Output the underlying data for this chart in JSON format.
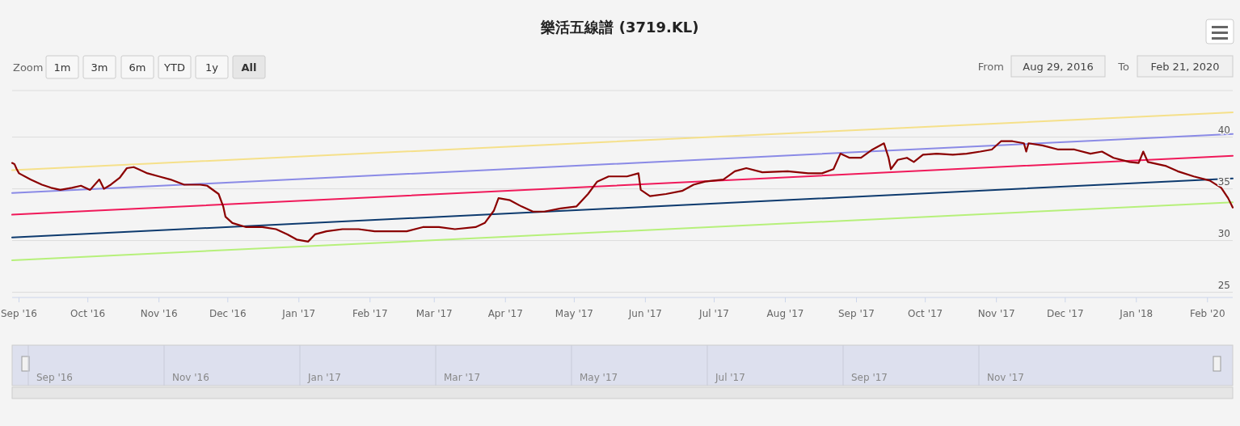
{
  "chart_data": {
    "type": "line",
    "title": "樂活五線譜 (3719.KL)",
    "xlim": [
      "2016-08-29",
      "2018-02-12"
    ],
    "ylim": [
      24.5,
      44.5
    ],
    "yticks": [
      25,
      30,
      35,
      40
    ],
    "xticks": [
      {
        "value": "2016-09-01",
        "label": "Sep '16"
      },
      {
        "value": "2016-10-01",
        "label": "Oct '16"
      },
      {
        "value": "2016-11-01",
        "label": "Nov '16"
      },
      {
        "value": "2016-12-01",
        "label": "Dec '16"
      },
      {
        "value": "2017-01-01",
        "label": "Jan '17"
      },
      {
        "value": "2017-02-01",
        "label": "Feb '17"
      },
      {
        "value": "2017-03-01",
        "label": "Mar '17"
      },
      {
        "value": "2017-04-01",
        "label": "Apr '17"
      },
      {
        "value": "2017-05-01",
        "label": "May '17"
      },
      {
        "value": "2017-06-01",
        "label": "Jun '17"
      },
      {
        "value": "2017-07-01",
        "label": "Jul '17"
      },
      {
        "value": "2017-08-01",
        "label": "Aug '17"
      },
      {
        "value": "2017-09-01",
        "label": "Sep '17"
      },
      {
        "value": "2017-10-01",
        "label": "Oct '17"
      },
      {
        "value": "2017-11-01",
        "label": "Nov '17"
      },
      {
        "value": "2017-12-01",
        "label": "Dec '17"
      },
      {
        "value": "2018-01-01",
        "label": "Jan '18"
      },
      {
        "value": "2018-02-01",
        "label": "Feb '20"
      }
    ],
    "grid": "y",
    "marker": "none",
    "line_style": "solid",
    "series": [
      {
        "color": "#f5e08a",
        "x": [
          "2016-08-29",
          "2018-02-12"
        ],
        "values": [
          36.8,
          42.4
        ]
      },
      {
        "color": "#8a8ae6",
        "x": [
          "2016-08-29",
          "2018-02-12"
        ],
        "values": [
          34.6,
          40.3
        ]
      },
      {
        "color": "#f0195a",
        "x": [
          "2016-08-29",
          "2018-02-12"
        ],
        "values": [
          32.5,
          38.2
        ]
      },
      {
        "color": "#0d3a6e",
        "x": [
          "2016-08-29",
          "2018-02-12"
        ],
        "values": [
          30.3,
          36.0
        ]
      },
      {
        "color": "#b6f07a",
        "x": [
          "2016-08-29",
          "2018-02-12"
        ],
        "values": [
          28.1,
          33.7
        ]
      },
      {
        "color": "#8b0000",
        "x": [
          "2016-08-29",
          "2016-08-30",
          "2016-08-31",
          "2016-09-01",
          "2016-09-06",
          "2016-09-11",
          "2016-09-15",
          "2016-09-19",
          "2016-09-24",
          "2016-09-28",
          "2016-10-02",
          "2016-10-06",
          "2016-10-08",
          "2016-10-11",
          "2016-10-15",
          "2016-10-18",
          "2016-10-21",
          "2016-10-23",
          "2016-10-27",
          "2016-11-01",
          "2016-11-06",
          "2016-11-12",
          "2016-11-19",
          "2016-11-22",
          "2016-11-27",
          "2016-11-29",
          "2016-11-30",
          "2016-12-03",
          "2016-12-09",
          "2016-12-16",
          "2016-12-22",
          "2016-12-27",
          "2016-12-31",
          "2017-01-05",
          "2017-01-08",
          "2017-01-13",
          "2017-01-20",
          "2017-01-27",
          "2017-02-03",
          "2017-02-10",
          "2017-02-17",
          "2017-02-24",
          "2017-03-03",
          "2017-03-10",
          "2017-03-19",
          "2017-03-23",
          "2017-03-27",
          "2017-03-29",
          "2017-04-03",
          "2017-04-08",
          "2017-04-13",
          "2017-04-18",
          "2017-04-25",
          "2017-05-02",
          "2017-05-07",
          "2017-05-11",
          "2017-05-16",
          "2017-05-24",
          "2017-05-29",
          "2017-05-30",
          "2017-06-03",
          "2017-06-10",
          "2017-06-17",
          "2017-06-22",
          "2017-06-27",
          "2017-07-05",
          "2017-07-10",
          "2017-07-15",
          "2017-07-22",
          "2017-08-02",
          "2017-08-11",
          "2017-08-17",
          "2017-08-22",
          "2017-08-25",
          "2017-08-29",
          "2017-09-03",
          "2017-09-08",
          "2017-09-13",
          "2017-09-15",
          "2017-09-16",
          "2017-09-19",
          "2017-09-23",
          "2017-09-26",
          "2017-09-30",
          "2017-10-06",
          "2017-10-13",
          "2017-10-19",
          "2017-10-25",
          "2017-10-30",
          "2017-11-03",
          "2017-11-08",
          "2017-11-13",
          "2017-11-14",
          "2017-11-15",
          "2017-11-21",
          "2017-11-28",
          "2017-12-05",
          "2017-12-12",
          "2017-12-17",
          "2017-12-22",
          "2017-12-29",
          "2018-01-02",
          "2018-01-04",
          "2018-01-06",
          "2018-01-14",
          "2018-01-19",
          "2018-01-26",
          "2018-02-02",
          "2018-02-07",
          "2018-02-10",
          "2018-02-12"
        ],
        "values": [
          37.5,
          37.4,
          36.9,
          36.5,
          35.9,
          35.4,
          35.1,
          34.9,
          35.1,
          35.3,
          34.9,
          35.9,
          35.0,
          35.4,
          36.1,
          37.0,
          37.1,
          36.9,
          36.5,
          36.2,
          35.9,
          35.4,
          35.4,
          35.3,
          34.5,
          33.3,
          32.3,
          31.7,
          31.3,
          31.3,
          31.1,
          30.6,
          30.1,
          29.9,
          30.6,
          30.9,
          31.1,
          31.1,
          30.9,
          30.9,
          30.9,
          31.3,
          31.3,
          31.1,
          31.3,
          31.7,
          32.9,
          34.1,
          33.9,
          33.3,
          32.8,
          32.8,
          33.1,
          33.3,
          34.5,
          35.7,
          36.2,
          36.2,
          36.5,
          34.9,
          34.3,
          34.5,
          34.8,
          35.4,
          35.7,
          35.9,
          36.7,
          37.0,
          36.6,
          36.7,
          36.5,
          36.5,
          36.9,
          38.4,
          38.0,
          38.0,
          38.8,
          39.4,
          38.0,
          36.9,
          37.8,
          38.0,
          37.6,
          38.3,
          38.4,
          38.3,
          38.4,
          38.6,
          38.8,
          39.6,
          39.6,
          39.4,
          38.6,
          39.4,
          39.2,
          38.8,
          38.8,
          38.4,
          38.6,
          38.0,
          37.6,
          37.5,
          38.6,
          37.6,
          37.2,
          36.7,
          36.2,
          35.8,
          35.1,
          34.1,
          33.2
        ]
      }
    ],
    "annotations": [
      "Zoom",
      "1m",
      "3m",
      "6m",
      "YTD",
      "1y",
      "All",
      "From",
      "Aug 29, 2016",
      "To",
      "Feb 21, 2020",
      "Sep '16",
      "Nov '16",
      "Jan '17",
      "Mar '17",
      "May '17",
      "Jul '17",
      "Sep '17",
      "Nov '17"
    ]
  }
}
